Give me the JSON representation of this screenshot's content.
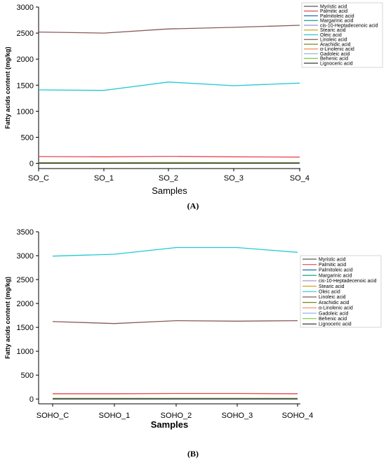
{
  "colors": {
    "Myristic acid": "#5a5a5a",
    "Palmitic acid": "#e8474c",
    "Palmitoleic acid": "#1a6fb5",
    "Margarinic acid": "#14a085",
    "cis-10-Heptadecenoic acid": "#9b8fd6",
    "Stearic acid": "#d4a21a",
    "Oleic acid": "#21c9d6",
    "Linoleic acid": "#8a5a5a",
    "Arachidic acid": "#6d8a1a",
    "α-Linolenic acid": "#f08a4b",
    "Gadoleic acid": "#8fb8e8",
    "Behenic acid": "#7ac943",
    "Lignoceric acid": "#3a3a3a"
  },
  "chart_data": [
    {
      "type": "line",
      "panel_label": "(A)",
      "xlabel": "Samples",
      "ylabel": "Fatty acids content (mg/kg)",
      "categories": [
        "SO_C",
        "SO_1",
        "SO_2",
        "SO_3",
        "SO_4"
      ],
      "ylim": [
        -100,
        3000
      ],
      "yticks": [
        0,
        500,
        1000,
        1500,
        2000,
        2500,
        3000
      ],
      "legend_position": "top-right",
      "series": [
        {
          "name": "Myristic acid",
          "values": [
            3,
            3,
            3,
            3,
            3
          ]
        },
        {
          "name": "Palmitic acid",
          "values": [
            130,
            125,
            135,
            125,
            120
          ]
        },
        {
          "name": "Palmitoleic acid",
          "values": [
            2,
            2,
            2,
            2,
            2
          ]
        },
        {
          "name": "Margarinic acid",
          "values": [
            1,
            1,
            1,
            1,
            1
          ]
        },
        {
          "name": "cis-10-Heptadecenoic acid",
          "values": [
            1,
            1,
            1,
            1,
            1
          ]
        },
        {
          "name": "Stearic acid",
          "values": [
            15,
            14,
            16,
            14,
            14
          ]
        },
        {
          "name": "Oleic acid",
          "values": [
            1410,
            1400,
            1560,
            1490,
            1540
          ]
        },
        {
          "name": "Linoleic acid",
          "values": [
            2520,
            2500,
            2580,
            2610,
            2650
          ]
        },
        {
          "name": "Arachidic acid",
          "values": [
            5,
            5,
            5,
            5,
            5
          ]
        },
        {
          "name": "α-Linolenic acid",
          "values": [
            8,
            8,
            9,
            8,
            8
          ]
        },
        {
          "name": "Gadoleic acid",
          "values": [
            6,
            6,
            6,
            6,
            6
          ]
        },
        {
          "name": "Behenic acid",
          "values": [
            10,
            10,
            11,
            10,
            10
          ]
        },
        {
          "name": "Lignoceric acid",
          "values": [
            4,
            4,
            4,
            4,
            4
          ]
        }
      ]
    },
    {
      "type": "line",
      "panel_label": "(B)",
      "xlabel": "Samples",
      "ylabel": "Fatty acids content (mg/kg)",
      "categories": [
        "SOHO_C",
        "SOHO_1",
        "SOHO_2",
        "SOHO_3",
        "SOHO_4"
      ],
      "ylim": [
        -100,
        3500
      ],
      "yticks": [
        0,
        500,
        1000,
        1500,
        2000,
        2500,
        3000,
        3500
      ],
      "legend_position": "right",
      "series": [
        {
          "name": "Myristic acid",
          "values": [
            3,
            3,
            3,
            3,
            3
          ]
        },
        {
          "name": "Palmitic acid",
          "values": [
            110,
            110,
            115,
            115,
            110
          ]
        },
        {
          "name": "Palmitoleic acid",
          "values": [
            2,
            2,
            2,
            2,
            2
          ]
        },
        {
          "name": "Margarinic acid",
          "values": [
            1,
            1,
            1,
            1,
            1
          ]
        },
        {
          "name": "cis-10-Heptadecenoic acid",
          "values": [
            1,
            1,
            1,
            1,
            1
          ]
        },
        {
          "name": "Stearic acid",
          "values": [
            15,
            15,
            16,
            15,
            15
          ]
        },
        {
          "name": "Oleic acid",
          "values": [
            2990,
            3030,
            3170,
            3170,
            3070
          ]
        },
        {
          "name": "Linoleic acid",
          "values": [
            1620,
            1580,
            1640,
            1630,
            1640
          ]
        },
        {
          "name": "Arachidic acid",
          "values": [
            5,
            5,
            5,
            5,
            5
          ]
        },
        {
          "name": "α-Linolenic acid",
          "values": [
            8,
            8,
            9,
            8,
            8
          ]
        },
        {
          "name": "Gadoleic acid",
          "values": [
            6,
            6,
            6,
            6,
            6
          ]
        },
        {
          "name": "Behenic acid",
          "values": [
            10,
            10,
            10,
            10,
            10
          ]
        },
        {
          "name": "Lignoceric acid",
          "values": [
            4,
            4,
            4,
            4,
            4
          ]
        }
      ]
    }
  ]
}
